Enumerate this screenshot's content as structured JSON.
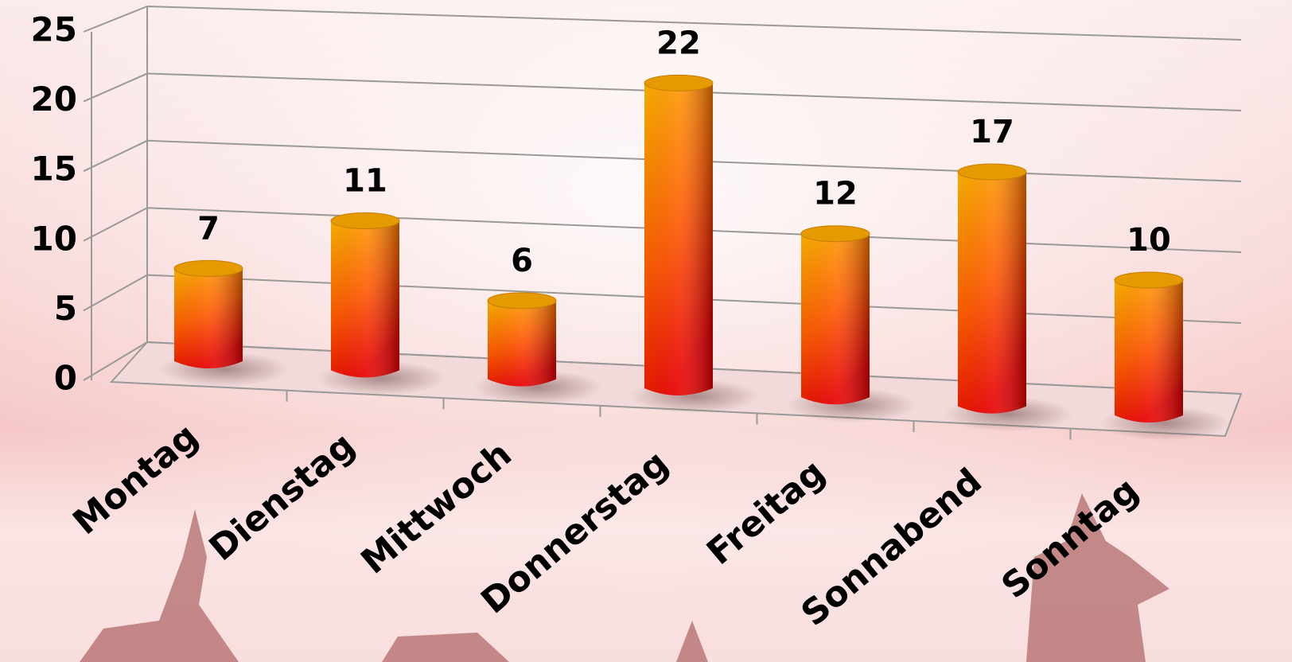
{
  "chart_data": {
    "type": "bar3d",
    "categories": [
      "Montag",
      "Dienstag",
      "Mittwoch",
      "Donnerstag",
      "Freitag",
      "Sonnabend",
      "Sonntag"
    ],
    "values": [
      7,
      11,
      6,
      22,
      12,
      17,
      10
    ],
    "ylim": [
      0,
      25
    ],
    "yticks": [
      0,
      5,
      10,
      15,
      20,
      25
    ],
    "grid": true,
    "color": "#ff7a00"
  }
}
